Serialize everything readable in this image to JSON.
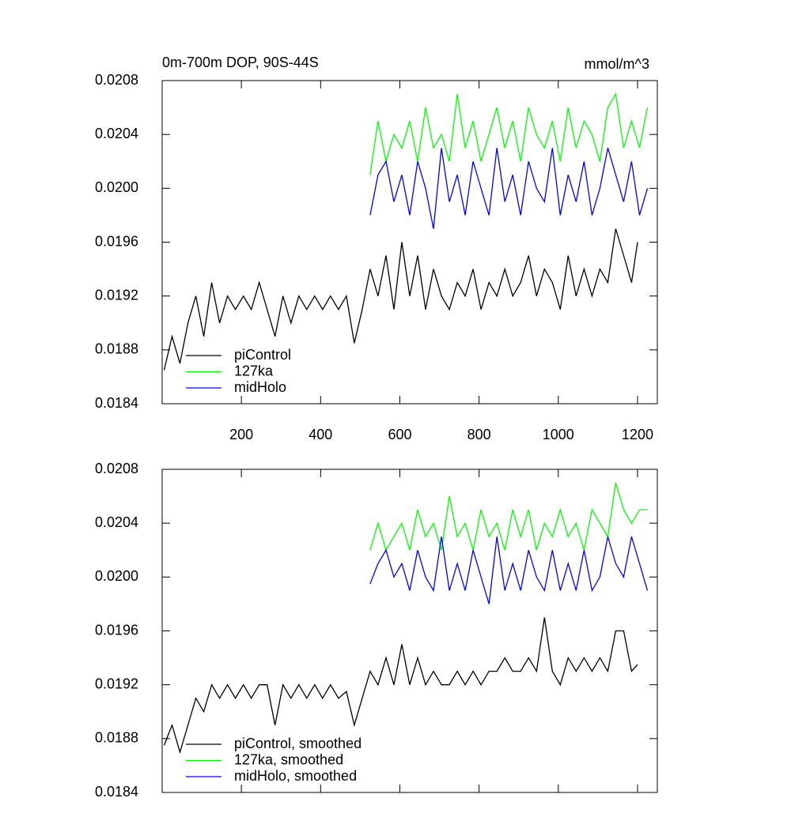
{
  "chart_data": [
    {
      "type": "line",
      "title": "0m-700m DOP, 90S-44S",
      "units": "mmol/m^3",
      "xlim": [
        0,
        1250
      ],
      "ylim": [
        0.0184,
        0.0208
      ],
      "xticks": [
        200,
        400,
        600,
        800,
        1000,
        1200
      ],
      "show_xtick_labels": true,
      "yticks": [
        0.0184,
        0.0188,
        0.0192,
        0.0196,
        {
          "value": 0.02,
          "label": "0.0200"
        },
        0.0204,
        0.0208
      ],
      "legend": "lower left",
      "series": [
        {
          "name": "piControl",
          "color": "#000000",
          "x": [
            5,
            25,
            45,
            65,
            85,
            105,
            125,
            145,
            165,
            185,
            205,
            225,
            245,
            265,
            285,
            305,
            325,
            345,
            365,
            385,
            405,
            425,
            445,
            465,
            485,
            505,
            525,
            545,
            565,
            585,
            605,
            625,
            645,
            665,
            685,
            705,
            725,
            745,
            765,
            785,
            805,
            825,
            845,
            865,
            885,
            905,
            925,
            945,
            965,
            985,
            1005,
            1025,
            1045,
            1065,
            1085,
            1105,
            1125,
            1145,
            1165,
            1185,
            1200
          ],
          "values": [
            0.01865,
            0.0189,
            0.0187,
            0.019,
            0.0192,
            0.0189,
            0.0193,
            0.019,
            0.0192,
            0.0191,
            0.0192,
            0.0191,
            0.0193,
            0.0191,
            0.0189,
            0.0192,
            0.019,
            0.0192,
            0.0191,
            0.0192,
            0.0191,
            0.0192,
            0.0191,
            0.0192,
            0.01885,
            0.0191,
            0.0194,
            0.0192,
            0.0195,
            0.0191,
            0.0196,
            0.0192,
            0.0195,
            0.0191,
            0.0194,
            0.0192,
            0.0191,
            0.0193,
            0.0192,
            0.0194,
            0.0191,
            0.0193,
            0.0192,
            0.0194,
            0.0192,
            0.0193,
            0.0195,
            0.0192,
            0.0194,
            0.0193,
            0.0191,
            0.0195,
            0.0192,
            0.0194,
            0.0192,
            0.0194,
            0.0193,
            0.0197,
            0.0195,
            0.0193,
            0.0196
          ]
        },
        {
          "name": "127ka",
          "color": "#00ff00",
          "x": [
            525,
            545,
            565,
            585,
            605,
            625,
            645,
            665,
            685,
            705,
            725,
            745,
            765,
            785,
            805,
            825,
            845,
            865,
            885,
            905,
            925,
            945,
            965,
            985,
            1005,
            1025,
            1045,
            1065,
            1085,
            1105,
            1125,
            1145,
            1165,
            1185,
            1205,
            1225
          ],
          "values": [
            0.0201,
            0.0205,
            0.0202,
            0.0204,
            0.0203,
            0.0205,
            0.0202,
            0.0206,
            0.0203,
            0.0204,
            0.0202,
            0.0207,
            0.0203,
            0.0205,
            0.0202,
            0.0204,
            0.0206,
            0.0203,
            0.0205,
            0.0202,
            0.0206,
            0.0204,
            0.0203,
            0.0205,
            0.0202,
            0.0206,
            0.0203,
            0.0205,
            0.0204,
            0.0202,
            0.0206,
            0.0207,
            0.0203,
            0.0205,
            0.0203,
            0.0206
          ]
        },
        {
          "name": "midHolo",
          "color": "#0000ff",
          "x": [
            525,
            545,
            565,
            585,
            605,
            625,
            645,
            665,
            685,
            705,
            725,
            745,
            765,
            785,
            805,
            825,
            845,
            865,
            885,
            905,
            925,
            945,
            965,
            985,
            1005,
            1025,
            1045,
            1065,
            1085,
            1105,
            1125,
            1145,
            1165,
            1185,
            1205,
            1225
          ],
          "values": [
            0.0198,
            0.0201,
            0.0202,
            0.0199,
            0.0201,
            0.0198,
            0.0202,
            0.02,
            0.0197,
            0.0203,
            0.0199,
            0.0201,
            0.0198,
            0.0202,
            0.02,
            0.0198,
            0.0203,
            0.0199,
            0.0201,
            0.0198,
            0.0202,
            0.02,
            0.0199,
            0.0203,
            0.0198,
            0.0201,
            0.0199,
            0.0202,
            0.0198,
            0.02,
            0.0203,
            0.0201,
            0.0199,
            0.0202,
            0.0198,
            0.02
          ]
        }
      ]
    },
    {
      "type": "line",
      "xlim": [
        0,
        1250
      ],
      "ylim": [
        0.0184,
        0.0208
      ],
      "xticks": [
        200,
        400,
        600,
        800,
        1000,
        1200
      ],
      "show_xtick_labels": false,
      "yticks": [
        0.0184,
        0.0188,
        0.0192,
        0.0196,
        {
          "value": 0.02,
          "label": "0.0200"
        },
        0.0204,
        0.0208
      ],
      "legend": "lower left",
      "series": [
        {
          "name": "piControl, smoothed",
          "color": "#000000",
          "x": [
            5,
            25,
            45,
            65,
            85,
            105,
            125,
            145,
            165,
            185,
            205,
            225,
            245,
            265,
            285,
            305,
            325,
            345,
            365,
            385,
            405,
            425,
            445,
            465,
            485,
            505,
            525,
            545,
            565,
            585,
            605,
            625,
            645,
            665,
            685,
            705,
            725,
            745,
            765,
            785,
            805,
            825,
            845,
            865,
            885,
            905,
            925,
            945,
            965,
            985,
            1005,
            1025,
            1045,
            1065,
            1085,
            1105,
            1125,
            1145,
            1165,
            1185,
            1200
          ],
          "values": [
            0.01875,
            0.0189,
            0.0187,
            0.0189,
            0.0191,
            0.019,
            0.0192,
            0.0191,
            0.0192,
            0.0191,
            0.0192,
            0.0191,
            0.0192,
            0.0192,
            0.0189,
            0.0192,
            0.0191,
            0.0192,
            0.0191,
            0.0192,
            0.0191,
            0.0192,
            0.0191,
            0.01915,
            0.0189,
            0.0191,
            0.0193,
            0.0192,
            0.0194,
            0.0192,
            0.0195,
            0.0192,
            0.0194,
            0.0192,
            0.0193,
            0.0192,
            0.0192,
            0.0193,
            0.0192,
            0.0193,
            0.0192,
            0.0193,
            0.0193,
            0.0194,
            0.0193,
            0.0193,
            0.0194,
            0.0193,
            0.0197,
            0.0193,
            0.0192,
            0.0194,
            0.0193,
            0.0194,
            0.0193,
            0.0194,
            0.0193,
            0.0196,
            0.0196,
            0.0193,
            0.01935
          ]
        },
        {
          "name": "127ka, smoothed",
          "color": "#00ff00",
          "x": [
            525,
            545,
            565,
            585,
            605,
            625,
            645,
            665,
            685,
            705,
            725,
            745,
            765,
            785,
            805,
            825,
            845,
            865,
            885,
            905,
            925,
            945,
            965,
            985,
            1005,
            1025,
            1045,
            1065,
            1085,
            1105,
            1125,
            1145,
            1165,
            1185,
            1205,
            1225
          ],
          "values": [
            0.0202,
            0.0204,
            0.0202,
            0.0203,
            0.0204,
            0.0202,
            0.0205,
            0.0203,
            0.0204,
            0.0202,
            0.0206,
            0.0203,
            0.0204,
            0.0202,
            0.0205,
            0.0203,
            0.0204,
            0.0202,
            0.0205,
            0.0203,
            0.0205,
            0.0202,
            0.0204,
            0.0203,
            0.0205,
            0.0203,
            0.0204,
            0.0202,
            0.0205,
            0.0204,
            0.0203,
            0.0207,
            0.0205,
            0.0204,
            0.0205,
            0.0205
          ]
        },
        {
          "name": "midHolo, smoothed",
          "color": "#0000ff",
          "x": [
            525,
            545,
            565,
            585,
            605,
            625,
            645,
            665,
            685,
            705,
            725,
            745,
            765,
            785,
            805,
            825,
            845,
            865,
            885,
            905,
            925,
            945,
            965,
            985,
            1005,
            1025,
            1045,
            1065,
            1085,
            1105,
            1125,
            1145,
            1165,
            1185,
            1205,
            1225
          ],
          "values": [
            0.01995,
            0.0201,
            0.0202,
            0.02,
            0.0201,
            0.0199,
            0.0202,
            0.02,
            0.0199,
            0.0203,
            0.0199,
            0.0201,
            0.0199,
            0.0202,
            0.02,
            0.0198,
            0.0203,
            0.0199,
            0.0201,
            0.0199,
            0.0202,
            0.02,
            0.0199,
            0.0202,
            0.0199,
            0.0201,
            0.0199,
            0.0202,
            0.0199,
            0.02,
            0.0203,
            0.0201,
            0.02,
            0.0203,
            0.0201,
            0.0199
          ]
        }
      ]
    }
  ]
}
